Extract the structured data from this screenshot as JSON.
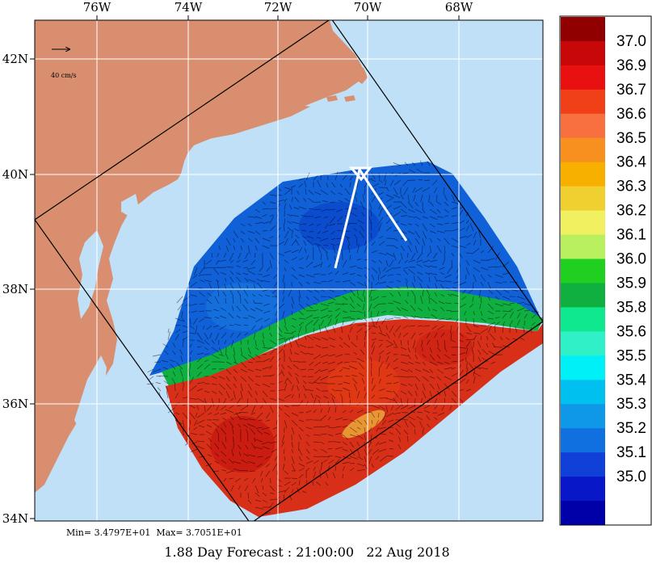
{
  "map": {
    "lon_labels": [
      "76W",
      "74W",
      "72W",
      "70W",
      "68W"
    ],
    "lat_labels": [
      "42N",
      "40N",
      "38N",
      "36N",
      "34N"
    ],
    "vector_scale_label": "40 cm/s",
    "land_color": "#d98f6f",
    "ocean_color": "#c0e0f8",
    "grid_color": "#ffffff",
    "fresh_color": "#1060d8",
    "warm_color": "#d83018"
  },
  "stats": {
    "min_label": "Min= 3.4797E+01",
    "max_label": "Max= 3.7051E+01"
  },
  "footer": {
    "forecast": "1.88 Day Forecast",
    "time": "21:00:00",
    "date": "22 Aug 2018"
  },
  "colorbar": {
    "labels": [
      "37.0",
      "36.9",
      "36.7",
      "36.6",
      "36.5",
      "36.4",
      "36.3",
      "36.2",
      "36.1",
      "36.0",
      "35.9",
      "35.8",
      "35.6",
      "35.5",
      "35.4",
      "35.3",
      "35.2",
      "35.1",
      "35.0"
    ],
    "colors": [
      "#900000",
      "#c80808",
      "#e81010",
      "#f04018",
      "#f87040",
      "#f89020",
      "#f8b000",
      "#f0d030",
      "#f0f060",
      "#b8f060",
      "#20d020",
      "#10b040",
      "#10e890",
      "#30f0c8",
      "#00f0f8",
      "#00c0f0",
      "#1098e8",
      "#1070e0",
      "#1040d8",
      "#0818c8",
      "#0000a8"
    ]
  }
}
